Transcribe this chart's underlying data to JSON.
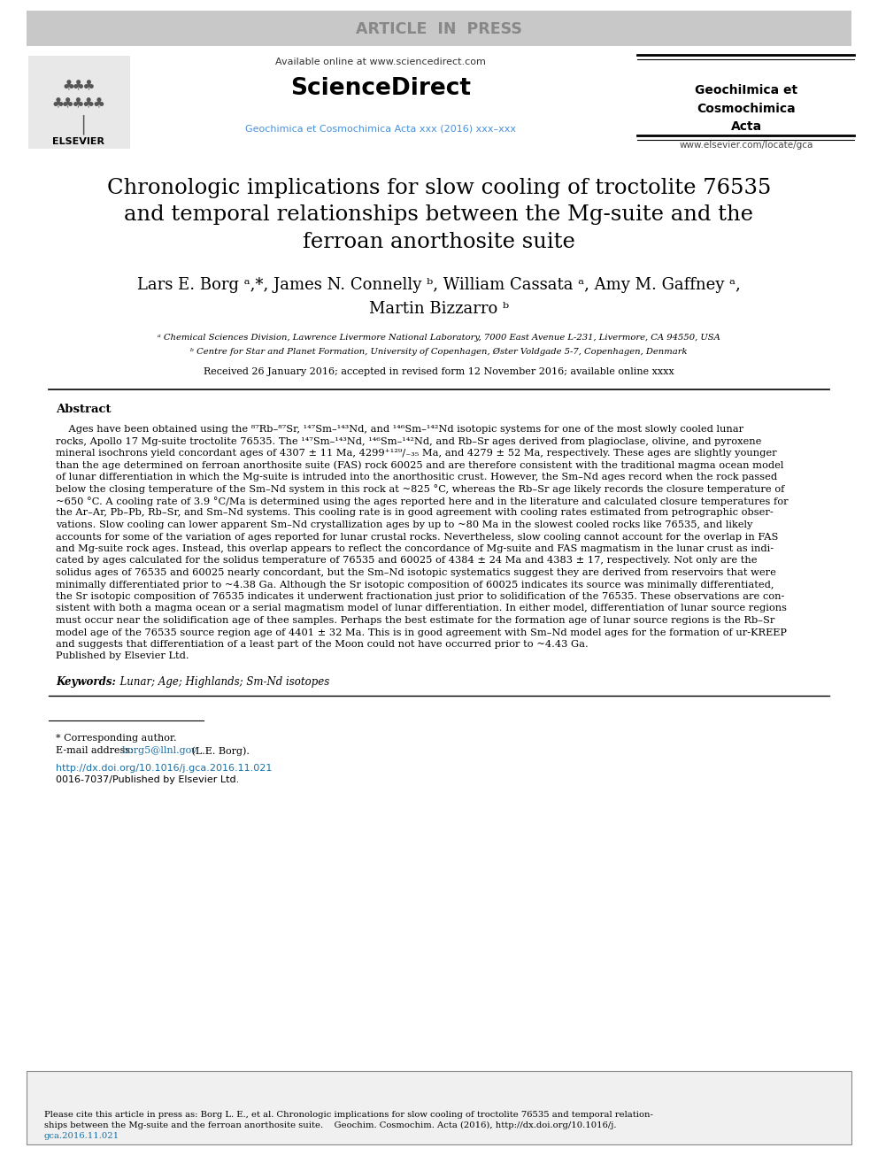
{
  "article_in_press_text": "ARTICLE  IN  PRESS",
  "article_in_press_bg": "#c8c8c8",
  "available_online": "Available online at www.sciencedirect.com",
  "journal_name_link": "Geochimica et Cosmochimica Acta xxx (2016) xxx–xxx",
  "journal_name_link_color": "#4a90d9",
  "journal_right_bold": "GeochiImica et\nCosmochimica\nActa",
  "website": "www.elsevier.com/locate/gca",
  "title_line1": "Chronologic implications for slow cooling of troctolite 76535",
  "title_line2": "and temporal relationships between the Mg-suite and the",
  "title_line3": "ferroan anorthosite suite",
  "author_line1": "Lars E. Borg ᵃ,*, James N. Connelly ᵇ, William Cassata ᵃ, Amy M. Gaffney ᵃ,",
  "author_line2": "Martin Bizzarro ᵇ",
  "affil_a": "ᵃ Chemical Sciences Division, Lawrence Livermore National Laboratory, 7000 East Avenue L-231, Livermore, CA 94550, USA",
  "affil_b": "ᵇ Centre for Star and Planet Formation, University of Copenhagen, Øster Voldgade 5-7, Copenhagen, Denmark",
  "received": "Received 26 January 2016; accepted in revised form 12 November 2016; available online xxxx",
  "abstract_title": "Abstract",
  "abstract_lines": [
    "    Ages have been obtained using the ⁸⁷Rb–⁸⁷Sr, ¹⁴⁷Sm–¹⁴³Nd, and ¹⁴⁶Sm–¹⁴²Nd isotopic systems for one of the most slowly cooled lunar",
    "rocks, Apollo 17 Mg-suite troctolite 76535. The ¹⁴⁷Sm–¹⁴³Nd, ¹⁴⁶Sm–¹⁴²Nd, and Rb–Sr ages derived from plagioclase, olivine, and pyroxene",
    "mineral isochrons yield concordant ages of 4307 ± 11 Ma, 4299⁺¹²⁹/₋₃₅ Ma, and 4279 ± 52 Ma, respectively. These ages are slightly younger",
    "than the age determined on ferroan anorthosite suite (FAS) rock 60025 and are therefore consistent with the traditional magma ocean model",
    "of lunar differentiation in which the Mg-suite is intruded into the anorthositic crust. However, the Sm–Nd ages record when the rock passed",
    "below the closing temperature of the Sm–Nd system in this rock at ~825 °C, whereas the Rb–Sr age likely records the closure temperature of",
    "~650 °C. A cooling rate of 3.9 °C/Ma is determined using the ages reported here and in the literature and calculated closure temperatures for",
    "the Ar–Ar, Pb–Pb, Rb–Sr, and Sm–Nd systems. This cooling rate is in good agreement with cooling rates estimated from petrographic obser-",
    "vations. Slow cooling can lower apparent Sm–Nd crystallization ages by up to ~80 Ma in the slowest cooled rocks like 76535, and likely",
    "accounts for some of the variation of ages reported for lunar crustal rocks. Nevertheless, slow cooling cannot account for the overlap in FAS",
    "and Mg-suite rock ages. Instead, this overlap appears to reflect the concordance of Mg-suite and FAS magmatism in the lunar crust as indi-",
    "cated by ages calculated for the solidus temperature of 76535 and 60025 of 4384 ± 24 Ma and 4383 ± 17, respectively. Not only are the",
    "solidus ages of 76535 and 60025 nearly concordant, but the Sm–Nd isotopic systematics suggest they are derived from reservoirs that were",
    "minimally differentiated prior to ~4.38 Ga. Although the Sr isotopic composition of 60025 indicates its source was minimally differentiated,",
    "the Sr isotopic composition of 76535 indicates it underwent fractionation just prior to solidification of the 76535. These observations are con-",
    "sistent with both a magma ocean or a serial magmatism model of lunar differentiation. In either model, differentiation of lunar source regions",
    "must occur near the solidification age of thee samples. Perhaps the best estimate for the formation age of lunar source regions is the Rb–Sr",
    "model age of the 76535 source region age of 4401 ± 32 Ma. This is in good agreement with Sm–Nd model ages for the formation of ur-KREEP",
    "and suggests that differentiation of a least part of the Moon could not have occurred prior to ~4.43 Ga.",
    "Published by Elsevier Ltd."
  ],
  "keywords_label": "Keywords:",
  "keywords_text": "  Lunar; Age; Highlands; Sm-Nd isotopes",
  "corresponding_note": "* Corresponding author.",
  "email_label": "E-mail address:",
  "email_text": "borg5@llnl.gov",
  "email_suffix": " (L.E. Borg).",
  "doi_text": "http://dx.doi.org/10.1016/j.gca.2016.11.021",
  "issn_text": "0016-7037/Published by Elsevier Ltd.",
  "cite_line1": "Please cite this article in press as: Borg L. E., et al. Chronologic implications for slow cooling of troctolite 76535 and temporal relation-",
  "cite_line2": "ships between the Mg-suite and the ferroan anorthosite suite. Geochim. Cosmochim. Acta (2016), http://dx.doi.org/10.1016/j.",
  "cite_line3": "gca.2016.11.021",
  "bg_color": "#ffffff",
  "text_color": "#000000",
  "link_color": "#1a6fa6"
}
